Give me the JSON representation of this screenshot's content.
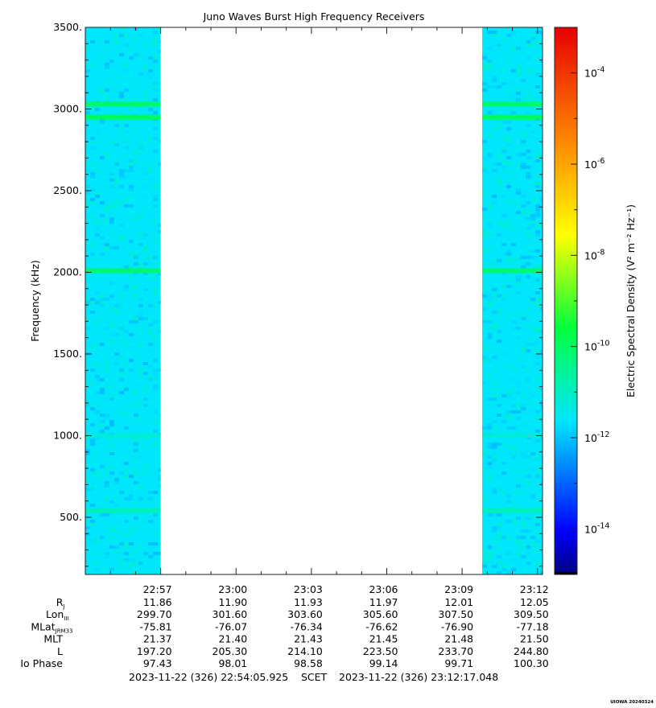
{
  "chart_data": {
    "type": "heatmap",
    "title": "Juno Waves Burst High Frequency Receivers",
    "ylabel": "Frequency (kHz)",
    "ylim": [
      150,
      3500
    ],
    "y_ticks": [
      500,
      1000,
      1500,
      2000,
      2500,
      3000,
      3500
    ],
    "y_tick_labels": [
      "500.",
      "1000.",
      "1500.",
      "2000.",
      "2500.",
      "3000.",
      "3500."
    ],
    "x_ticks_minutes": [
      3,
      6,
      9,
      12,
      15,
      18
    ],
    "x_tick_labels": [
      "22:57",
      "23:00",
      "23:03",
      "23:06",
      "23:09",
      "23:12"
    ],
    "time_start_label": "2023-11-22 (326) 22:54:05.925",
    "time_end_label": "2023-11-22 (326) 23:12:17.048",
    "scet_label": "SCET",
    "data_coverage": [
      {
        "start_min": 0.0,
        "end_min": 3.0
      },
      {
        "start_min": 15.8,
        "end_min": 18.2
      }
    ],
    "background_log10_density": -11.6,
    "emission_lines_khz": [
      {
        "freq": 540,
        "log10_density": -10.9
      },
      {
        "freq": 1000,
        "log10_density": -11.2
      },
      {
        "freq": 2010,
        "log10_density": -10.0
      },
      {
        "freq": 2950,
        "log10_density": -9.8
      },
      {
        "freq": 3030,
        "log10_density": -9.9
      }
    ],
    "colorbar": {
      "label": "Electric Spectral Density (V² m⁻² Hz⁻¹)",
      "range_log10": [
        -15,
        -3
      ],
      "tick_exponents": [
        -14,
        -12,
        -10,
        -8,
        -6,
        -4
      ],
      "tick_labels": [
        "10",
        "10",
        "10",
        "10",
        "10",
        "10"
      ],
      "tick_superscripts": [
        "-14",
        "-12",
        "-10",
        "-8",
        "-6",
        "-4"
      ],
      "palette": "rainbow"
    },
    "ephemeris": {
      "rows": [
        {
          "label": "R",
          "sub": "J",
          "values": [
            "11.86",
            "11.90",
            "11.93",
            "11.97",
            "12.01",
            "12.05"
          ]
        },
        {
          "label": "Lon",
          "sub": "III",
          "values": [
            "299.70",
            "301.60",
            "303.60",
            "305.60",
            "307.50",
            "309.50"
          ]
        },
        {
          "label": "MLat",
          "sub": "JRM33",
          "values": [
            "-75.81",
            "-76.07",
            "-76.34",
            "-76.62",
            "-76.90",
            "-77.18"
          ]
        },
        {
          "label": "MLT",
          "sub": "",
          "values": [
            "21.37",
            "21.40",
            "21.43",
            "21.45",
            "21.48",
            "21.50"
          ]
        },
        {
          "label": "L",
          "sub": "",
          "values": [
            "197.20",
            "205.30",
            "214.10",
            "223.50",
            "233.70",
            "244.80"
          ]
        },
        {
          "label": "Io Phase",
          "sub": "",
          "values": [
            "97.43",
            "98.01",
            "98.58",
            "99.14",
            "99.71",
            "100.30"
          ]
        }
      ]
    },
    "footer_stamp": "UIOWA 20240324"
  }
}
